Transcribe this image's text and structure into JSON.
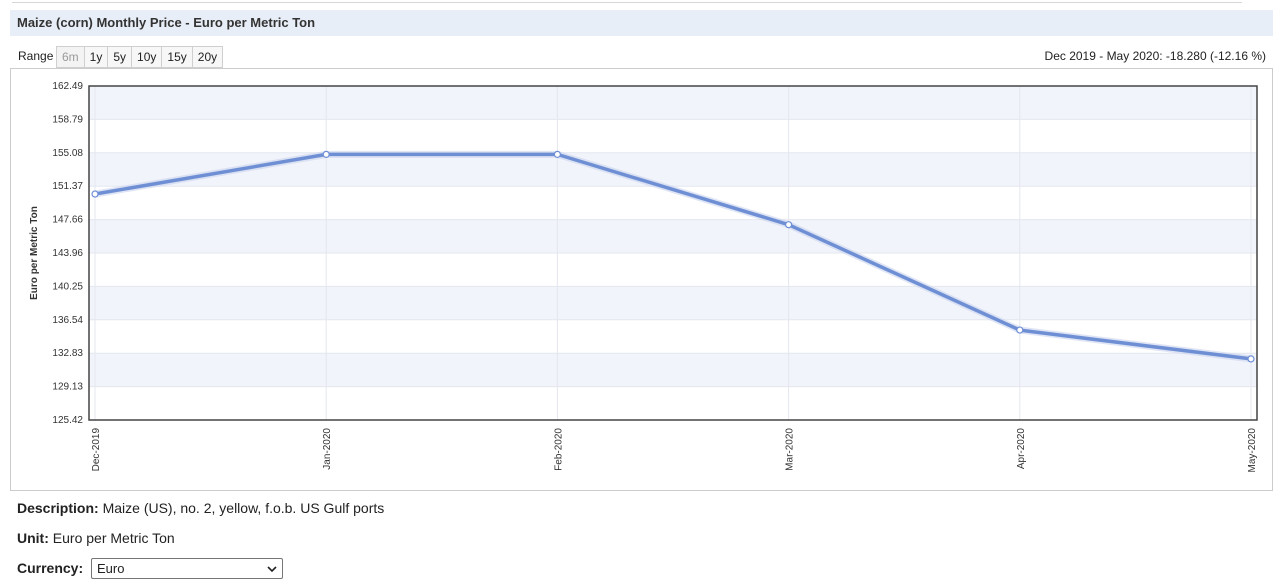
{
  "header": {
    "title": "Maize (corn) Monthly Price - Euro per Metric Ton"
  },
  "range": {
    "label": "Range",
    "buttons": [
      {
        "label": "6m",
        "disabled": true
      },
      {
        "label": "1y",
        "disabled": false
      },
      {
        "label": "5y",
        "disabled": false
      },
      {
        "label": "10y",
        "disabled": false
      },
      {
        "label": "15y",
        "disabled": false
      },
      {
        "label": "20y",
        "disabled": false
      }
    ],
    "summary": "Dec 2019 - May 2020: -18.280 (-12.16 %)"
  },
  "chart_data": {
    "type": "line",
    "title": "",
    "xlabel": "",
    "ylabel": "Euro per Metric Ton",
    "x": [
      "Dec-2019",
      "Jan-2020",
      "Feb-2020",
      "Mar-2020",
      "Apr-2020",
      "May-2020"
    ],
    "series": [
      {
        "values": [
          150.5,
          154.9,
          154.9,
          147.1,
          135.4,
          132.2
        ]
      }
    ],
    "ylim": [
      125.42,
      162.49
    ],
    "yticks": [
      "162.49",
      "158.79",
      "155.08",
      "151.37",
      "147.66",
      "143.96",
      "140.25",
      "136.54",
      "132.83",
      "129.13",
      "125.42"
    ],
    "grid": true,
    "line_color": "#6f8fd5",
    "band_color": "#f2f4fb"
  },
  "details": {
    "description_label": "Description:",
    "description_value": "Maize (US), no. 2, yellow, f.o.b. US Gulf ports",
    "unit_label": "Unit:",
    "unit_value": "Euro per Metric Ton",
    "currency_label": "Currency:",
    "currency_value": "Euro"
  }
}
